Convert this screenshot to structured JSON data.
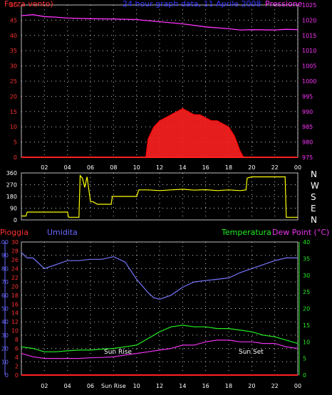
{
  "header": {
    "left_label": "Forza vento)",
    "title": "24 hour graph data, 11 Aprile 2008",
    "right_label": "Pressione"
  },
  "colors": {
    "wind": "#ff2020",
    "gust": "#ff0000",
    "pressure": "#ff33ff",
    "direction": "#ffff00",
    "humidity": "#7777ff",
    "temperature": "#22ee22",
    "dewpoint": "#ee33ee",
    "rain": "#ff2020",
    "axis_red": "#ff3030",
    "axis_blue": "#6a6aff",
    "axis_green": "#22ee22",
    "axis_pink": "#ee33ee",
    "grid": "#ffffff"
  },
  "panel2": {
    "compass": [
      "N",
      "W",
      "S",
      "E",
      "N"
    ]
  },
  "panel3": {
    "rain_label": "Pioggia",
    "humidity_label": "Umidita",
    "temperature_label": "Temperatura",
    "dewpoint_label": "Dew Point (°C)",
    "sunrise_label": "Sun Rise",
    "sunset_label": "Sun Set"
  },
  "chart_data": [
    {
      "type": "area",
      "xlabel": "",
      "ylabel": "",
      "x_ticks": [
        "02",
        "04",
        "06",
        "08",
        "10",
        "12",
        "14",
        "16",
        "18",
        "20",
        "22",
        "00"
      ],
      "ylim": [
        0,
        50
      ],
      "y_ticks": [
        0,
        5,
        10,
        15,
        20,
        25,
        30,
        35,
        40,
        45,
        50
      ],
      "y2lim": [
        975,
        1025
      ],
      "y2_ticks": [
        975,
        980,
        985,
        990,
        995,
        1000,
        1005,
        1010,
        1015,
        1020,
        1025
      ],
      "grid": true,
      "series": [
        {
          "name": "Forza vento)",
          "axis": "left",
          "x": [
            0,
            10.8,
            11,
            11.5,
            12,
            12.5,
            13,
            13.5,
            14,
            14.5,
            15,
            15.5,
            16,
            16.5,
            17,
            17.5,
            18,
            18.5,
            19,
            19.3,
            24
          ],
          "values": [
            0,
            0,
            6,
            10,
            12,
            13,
            14,
            15,
            16,
            15,
            14,
            14,
            13,
            12,
            12,
            11,
            10,
            7,
            2,
            0,
            0
          ]
        },
        {
          "name": "Pressione",
          "axis": "right",
          "x": [
            0,
            1,
            2,
            3,
            4,
            6,
            8,
            10,
            12,
            14,
            16,
            18,
            19,
            20,
            22,
            23,
            24
          ],
          "values": [
            1021.5,
            1021.8,
            1021.2,
            1021,
            1020.7,
            1020.5,
            1020.4,
            1020.2,
            1019.5,
            1018.8,
            1017.8,
            1017.2,
            1016.8,
            1016.9,
            1016.8,
            1017,
            1016.9
          ]
        }
      ]
    },
    {
      "type": "line",
      "xlabel": "",
      "ylabel": "",
      "ylim": [
        0,
        360
      ],
      "y_ticks": [
        0,
        90,
        180,
        270,
        360
      ],
      "grid": true,
      "series": [
        {
          "name": "",
          "x": [
            0,
            0.4,
            0.5,
            4,
            4.1,
            5,
            5.1,
            5.3,
            5.5,
            5.7,
            6,
            6.2,
            6.6,
            7.8,
            7.9,
            10,
            10.2,
            11,
            12,
            13,
            14,
            15,
            16,
            17,
            18,
            19,
            19.5,
            19.6,
            20,
            21,
            22.9,
            23,
            24
          ],
          "values": [
            30,
            30,
            60,
            60,
            20,
            20,
            340,
            320,
            250,
            330,
            140,
            140,
            120,
            120,
            180,
            180,
            230,
            230,
            225,
            230,
            235,
            228,
            232,
            225,
            230,
            225,
            230,
            320,
            330,
            330,
            330,
            20,
            20
          ]
        }
      ]
    },
    {
      "type": "line",
      "xlabel": "",
      "ylabel": "",
      "x_ticks": [
        "02",
        "04",
        "06",
        "Sun Rise",
        "10",
        "12",
        "14",
        "16",
        "18",
        "20",
        "22",
        "00"
      ],
      "ylim": [
        0,
        100
      ],
      "y_ticks": [
        0,
        10,
        20,
        30,
        40,
        50,
        60,
        70,
        80,
        90,
        100
      ],
      "y_ticks_rain": [
        0,
        2,
        4,
        6,
        8,
        10,
        12,
        14,
        16,
        18,
        20,
        22,
        24,
        26,
        28,
        30
      ],
      "y2lim": [
        0,
        40
      ],
      "y2_ticks": [
        0,
        5,
        10,
        15,
        20,
        25,
        30,
        35,
        40
      ],
      "grid": true,
      "series": [
        {
          "name": "Umidita",
          "axis": "humidity",
          "x": [
            0,
            0.5,
            1,
            1.5,
            2,
            3,
            4,
            5,
            6,
            7,
            8,
            9,
            10,
            11,
            11.5,
            12,
            13,
            14,
            15,
            16,
            17,
            18,
            19,
            20,
            21,
            22,
            23,
            24
          ],
          "values": [
            92,
            88,
            88,
            84,
            80,
            83,
            86,
            86,
            87,
            87,
            89,
            85,
            72,
            62,
            58,
            57,
            60,
            66,
            70,
            71,
            72,
            73,
            77,
            80,
            83,
            86,
            88,
            88
          ]
        },
        {
          "name": "Temperatura",
          "axis": "right",
          "x": [
            0,
            1,
            2,
            3,
            4,
            5,
            6,
            7,
            8,
            9,
            10,
            11,
            12,
            13,
            14,
            15,
            16,
            17,
            18,
            19,
            20,
            21,
            22,
            23,
            24
          ],
          "values": [
            8.5,
            8,
            7,
            7,
            7.3,
            7.5,
            7.5,
            7.8,
            8,
            8.5,
            9,
            11,
            13,
            14.5,
            15,
            14.5,
            14.5,
            14,
            14,
            13.5,
            13,
            12,
            11.5,
            10.5,
            9.5
          ]
        },
        {
          "name": "Dew Point (°C)",
          "axis": "right",
          "x": [
            0,
            1,
            2,
            3,
            4,
            5,
            6,
            7,
            8,
            9,
            10,
            11,
            12,
            13,
            14,
            15,
            16,
            17,
            18,
            19,
            20,
            21,
            22,
            23,
            24
          ],
          "values": [
            6.5,
            5.5,
            5,
            5,
            5,
            5,
            5.2,
            5.3,
            5.5,
            6,
            6.5,
            7,
            7.5,
            8,
            9,
            9,
            10,
            10.5,
            10.5,
            10,
            10,
            9.5,
            9.5,
            8.5,
            8
          ]
        },
        {
          "name": "Pioggia",
          "axis": "rain",
          "x": [
            0,
            24
          ],
          "values": [
            0,
            0
          ]
        }
      ]
    }
  ]
}
